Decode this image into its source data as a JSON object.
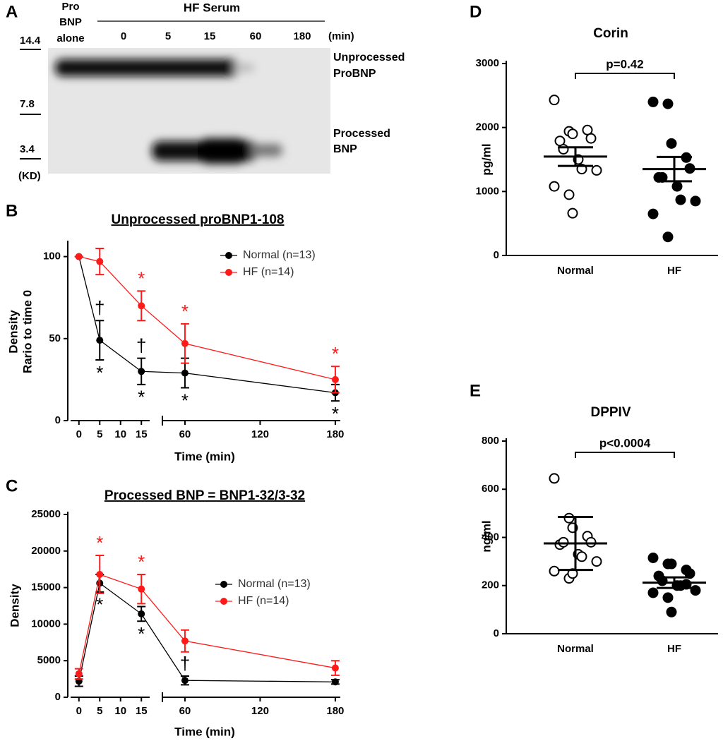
{
  "gel": {
    "panel": "A",
    "control": [
      "Pro",
      "BNP",
      "alone"
    ],
    "group": "HF Serum",
    "lanes": [
      "0",
      "5",
      "15",
      "60",
      "180"
    ],
    "unit": "(min)",
    "markers": [
      "14.4",
      "7.8",
      "3.4"
    ],
    "marker_unit": "(KD)",
    "bands": [
      [
        "Unprocessed",
        "ProBNP"
      ],
      [
        "Processed",
        "BNP"
      ]
    ]
  },
  "chart_data": [
    {
      "type": "line",
      "panel": "B",
      "title": "Unprocessed proBNP1-108",
      "ylabel": [
        "Density",
        "Rario to time 0"
      ],
      "xlabel": "Time (min)",
      "x": [
        0,
        5,
        15,
        60,
        180
      ],
      "xlim": [
        -2,
        184
      ],
      "xbreak": [
        17,
        42
      ],
      "xticks": [
        0,
        5,
        10,
        15,
        60,
        120,
        180
      ],
      "ylim": [
        0,
        108
      ],
      "yticks": [
        0,
        50,
        100
      ],
      "legend": "upper right",
      "series": [
        {
          "name": "Normal (n=13)",
          "color": "#000000",
          "values": [
            100,
            49,
            30,
            29,
            17
          ],
          "errors": [
            0,
            12,
            8,
            9,
            5
          ],
          "notes_above": [
            null,
            "†",
            "†",
            null,
            null
          ],
          "notes_below": [
            null,
            "*",
            "*",
            "*",
            "*"
          ]
        },
        {
          "name": "HF (n=14)",
          "color": "#ff1a1a",
          "values": [
            100,
            97,
            70,
            47,
            25
          ],
          "errors": [
            0,
            8,
            9,
            12,
            8
          ],
          "notes_above": [
            null,
            null,
            "*",
            "*",
            "*"
          ],
          "notes_below": [
            null,
            null,
            null,
            null,
            null
          ]
        }
      ]
    },
    {
      "type": "line",
      "panel": "C",
      "title": "Processed BNP = BNP1-32/3-32",
      "ylabel": "Density",
      "xlabel": "Time (min)",
      "x": [
        0,
        5,
        15,
        60,
        180
      ],
      "xlim": [
        -2,
        184
      ],
      "xbreak": [
        17,
        42
      ],
      "xticks": [
        0,
        5,
        10,
        15,
        60,
        120,
        180
      ],
      "ylim": [
        0,
        25000
      ],
      "yticks": [
        0,
        5000,
        10000,
        15000,
        20000,
        25000
      ],
      "legend": "upper right",
      "series": [
        {
          "name": "Normal (n=13)",
          "color": "#000000",
          "values": [
            2200,
            15600,
            11400,
            2300,
            2100
          ],
          "errors": [
            700,
            1200,
            1000,
            600,
            300
          ],
          "notes_above": [
            null,
            null,
            null,
            "†",
            null
          ],
          "notes_below": [
            null,
            "*",
            "*",
            null,
            null
          ]
        },
        {
          "name": "HF (n=14)",
          "color": "#ff1a1a",
          "values": [
            3200,
            16800,
            14800,
            7700,
            4000
          ],
          "errors": [
            700,
            2600,
            2000,
            1500,
            1000
          ],
          "notes_above": [
            null,
            "*",
            "*",
            null,
            null
          ],
          "notes_below": [
            null,
            null,
            null,
            null,
            null
          ]
        }
      ]
    },
    {
      "type": "strip",
      "panel": "D",
      "title": "Corin",
      "ylabel": "pg/ml",
      "categories": [
        "Normal",
        "HF"
      ],
      "ylim": [
        0,
        3000
      ],
      "yticks": [
        0,
        1000,
        2000,
        3000
      ],
      "annotation": "p=0.42",
      "groups": [
        {
          "marker": "open",
          "color": "#000000",
          "values": [
            2430,
            1940,
            1900,
            1960,
            1830,
            1790,
            1660,
            1500,
            1350,
            1330,
            1080,
            950,
            660
          ],
          "mean": 1545,
          "error": 145
        },
        {
          "marker": "filled",
          "color": "#000000",
          "values": [
            2400,
            2370,
            1750,
            1530,
            1360,
            1220,
            1220,
            1080,
            870,
            850,
            650,
            290
          ],
          "mean": 1350,
          "error": 190
        }
      ]
    },
    {
      "type": "strip",
      "panel": "E",
      "title": "DPPIV",
      "ylabel": "ng/ml",
      "categories": [
        "Normal",
        "HF"
      ],
      "ylim": [
        0,
        800
      ],
      "yticks": [
        0,
        200,
        400,
        600,
        800
      ],
      "annotation": "p<0.0004",
      "groups": [
        {
          "marker": "open",
          "color": "#000000",
          "values": [
            645,
            480,
            440,
            405,
            380,
            370,
            380,
            330,
            320,
            300,
            260,
            230,
            250
          ],
          "mean": 375,
          "error": 110
        },
        {
          "marker": "filled",
          "color": "#000000",
          "values": [
            315,
            290,
            290,
            265,
            250,
            240,
            220,
            200,
            200,
            180,
            170,
            150,
            90,
            205
          ],
          "mean": 212,
          "error": 22
        }
      ]
    }
  ]
}
